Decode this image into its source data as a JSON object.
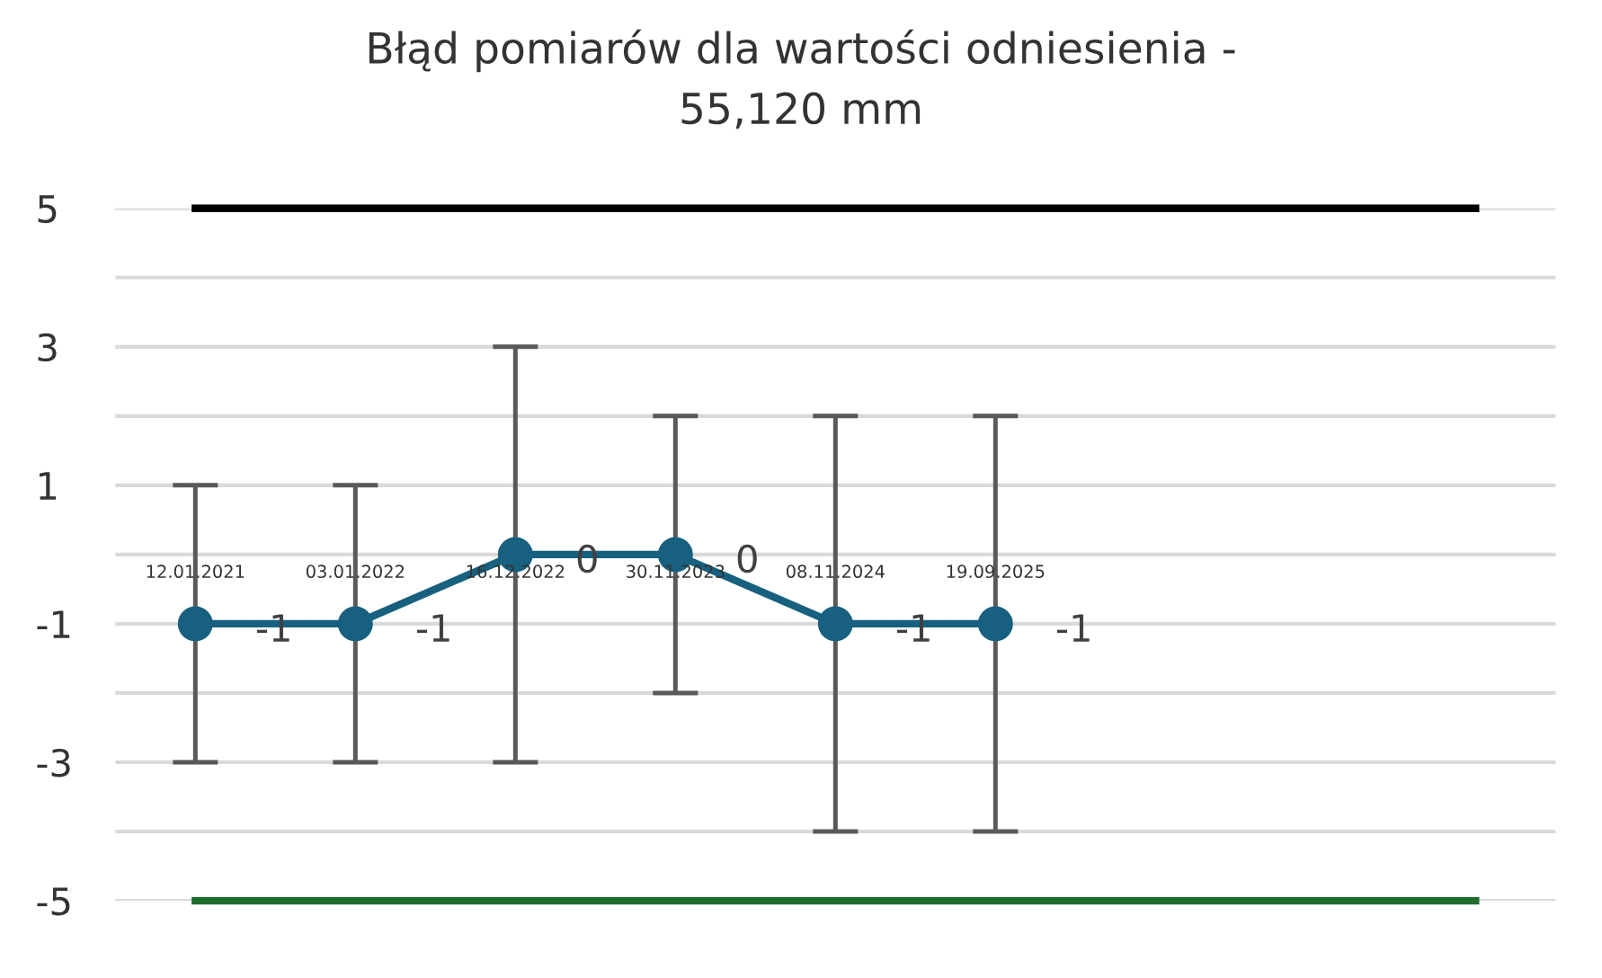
{
  "chart_data": {
    "type": "line",
    "title": "Błąd pomiarów dla wartości odniesienia -\n55,120 mm",
    "categories": [
      "12.01.2021",
      "03.01.2022",
      "16.12.2022",
      "30.11.2023",
      "08.11.2024",
      "19.09.2025",
      null,
      null,
      null
    ],
    "series": [
      {
        "color": "#000000",
        "values": [
          5,
          5,
          5,
          5,
          5,
          5,
          5,
          5,
          5
        ],
        "marker": "none"
      },
      {
        "color": "#1e6b2e",
        "values": [
          -5,
          -5,
          -5,
          -5,
          -5,
          -5,
          -5,
          -5,
          -5
        ],
        "marker": "none"
      },
      {
        "color": "#17607f",
        "values": [
          -1,
          -1,
          0,
          0,
          -1,
          -1,
          null,
          null,
          null
        ],
        "marker": "circle",
        "errors": [
          2,
          2,
          3,
          2,
          3,
          3,
          null,
          null,
          null
        ],
        "value_labels": [
          "-1",
          "-1",
          "0",
          "0",
          "-1",
          "-1",
          null,
          null,
          null
        ]
      }
    ],
    "ylim": [
      -5,
      5
    ],
    "yticks": [
      -5,
      {
        "value": -4,
        "label": null
      },
      -3,
      {
        "value": -2,
        "label": null
      },
      -1,
      {
        "value": 0,
        "label": null
      },
      1,
      {
        "value": 2,
        "label": null
      },
      3,
      {
        "value": 4,
        "label": null
      },
      5
    ],
    "grid": "y",
    "legend": false,
    "line_style": "solid"
  }
}
